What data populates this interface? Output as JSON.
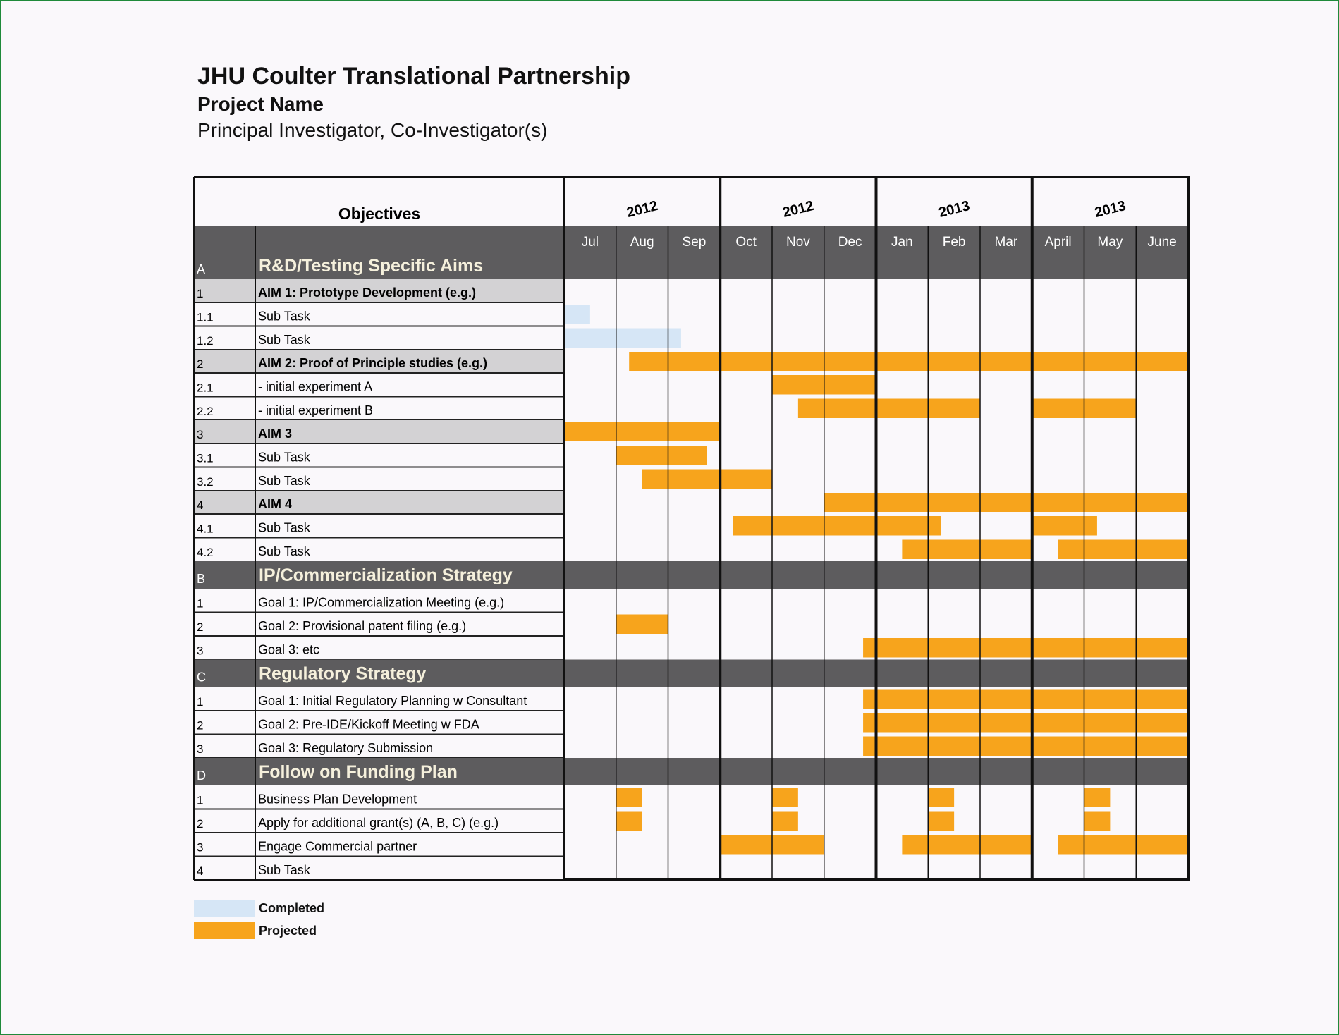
{
  "header": {
    "title": "JHU Coulter Translational Partnership",
    "project": "Project Name",
    "investigators": "Principal Investigator, Co-Investigator(s)"
  },
  "table": {
    "objectives_label": "Objectives",
    "years": [
      "2012",
      "2012",
      "2013",
      "2013"
    ],
    "months": [
      "Jul",
      "Aug",
      "Sep",
      "Oct",
      "Nov",
      "Dec",
      "Jan",
      "Feb",
      "Mar",
      "April",
      "May",
      "June"
    ]
  },
  "colors": {
    "completed": "#d6e6f6",
    "projected": "#f7a41c",
    "section_bg": "#5d5c5e",
    "aim_bg": "#d3d2d4"
  },
  "rows": [
    {
      "type": "section",
      "id": "A",
      "label": "R&D/Testing Specific Aims",
      "bars": []
    },
    {
      "type": "aim",
      "id": "1",
      "label": "AIM 1: Prototype Development (e.g.)",
      "bars": []
    },
    {
      "type": "task",
      "id": "1.1",
      "label": "Sub Task",
      "bars": [
        {
          "start": 0,
          "end": 0.5,
          "kind": "completed"
        }
      ]
    },
    {
      "type": "task",
      "id": "1.2",
      "label": "Sub Task",
      "bars": [
        {
          "start": 0,
          "end": 2.25,
          "kind": "completed"
        }
      ]
    },
    {
      "type": "aim",
      "id": "2",
      "label": "AIM 2: Proof of Principle studies (e.g.)",
      "bars": [
        {
          "start": 1.25,
          "end": 12,
          "kind": "projected"
        }
      ]
    },
    {
      "type": "task",
      "id": "2.1",
      "label": " - initial experiment A",
      "bars": [
        {
          "start": 4,
          "end": 6,
          "kind": "projected"
        }
      ]
    },
    {
      "type": "task",
      "id": "2.2",
      "label": " - initial experiment B",
      "bars": [
        {
          "start": 4.5,
          "end": 8,
          "kind": "projected"
        },
        {
          "start": 9,
          "end": 11,
          "kind": "projected"
        }
      ]
    },
    {
      "type": "aim",
      "id": "3",
      "label": "AIM 3",
      "bars": [
        {
          "start": 0,
          "end": 3,
          "kind": "projected"
        }
      ]
    },
    {
      "type": "task",
      "id": "3.1",
      "label": "Sub Task",
      "bars": [
        {
          "start": 1,
          "end": 2.75,
          "kind": "projected"
        }
      ]
    },
    {
      "type": "task",
      "id": "3.2",
      "label": "Sub Task",
      "bars": [
        {
          "start": 1.5,
          "end": 4,
          "kind": "projected"
        }
      ]
    },
    {
      "type": "aim",
      "id": "4",
      "label": "AIM 4",
      "bars": [
        {
          "start": 5,
          "end": 12,
          "kind": "projected"
        }
      ]
    },
    {
      "type": "task",
      "id": "4.1",
      "label": "Sub Task",
      "bars": [
        {
          "start": 3.25,
          "end": 7.25,
          "kind": "projected"
        },
        {
          "start": 9,
          "end": 10.25,
          "kind": "projected"
        }
      ]
    },
    {
      "type": "task",
      "id": "4.2",
      "label": "Sub Task",
      "bars": [
        {
          "start": 6.5,
          "end": 9,
          "kind": "projected"
        },
        {
          "start": 9.5,
          "end": 12,
          "kind": "projected"
        }
      ]
    },
    {
      "type": "section",
      "id": "B",
      "label": "IP/Commercialization Strategy",
      "bars": []
    },
    {
      "type": "task",
      "id": "1",
      "label": "Goal 1: IP/Commercialization Meeting (e.g.)",
      "bars": []
    },
    {
      "type": "task",
      "id": "2",
      "label": "Goal 2: Provisional patent filing (e.g.)",
      "bars": [
        {
          "start": 1,
          "end": 2,
          "kind": "projected"
        }
      ]
    },
    {
      "type": "task",
      "id": "3",
      "label": "Goal 3: etc",
      "bars": [
        {
          "start": 5.75,
          "end": 12,
          "kind": "projected"
        }
      ]
    },
    {
      "type": "section",
      "id": "C",
      "label": "Regulatory Strategy",
      "bars": []
    },
    {
      "type": "task",
      "id": "1",
      "label": "Goal 1: Initial Regulatory Planning w Consultant",
      "bars": [
        {
          "start": 5.75,
          "end": 12,
          "kind": "projected"
        }
      ]
    },
    {
      "type": "task",
      "id": "2",
      "label": "Goal 2: Pre-IDE/Kickoff Meeting w FDA",
      "bars": [
        {
          "start": 5.75,
          "end": 12,
          "kind": "projected"
        }
      ]
    },
    {
      "type": "task",
      "id": "3",
      "label": "Goal 3: Regulatory Submission",
      "bars": [
        {
          "start": 5.75,
          "end": 12,
          "kind": "projected"
        }
      ]
    },
    {
      "type": "section",
      "id": "D",
      "label": "Follow on Funding Plan",
      "bars": []
    },
    {
      "type": "task",
      "id": "1",
      "label": "Business Plan Development",
      "bars": [
        {
          "start": 1,
          "end": 1.5,
          "kind": "projected"
        },
        {
          "start": 4,
          "end": 4.5,
          "kind": "projected"
        },
        {
          "start": 7,
          "end": 7.5,
          "kind": "projected"
        },
        {
          "start": 10,
          "end": 10.5,
          "kind": "projected"
        }
      ]
    },
    {
      "type": "task",
      "id": "2",
      "label": "Apply for additional grant(s) (A, B, C) (e.g.)",
      "bars": [
        {
          "start": 1,
          "end": 1.5,
          "kind": "projected"
        },
        {
          "start": 4,
          "end": 4.5,
          "kind": "projected"
        },
        {
          "start": 7,
          "end": 7.5,
          "kind": "projected"
        },
        {
          "start": 10,
          "end": 10.5,
          "kind": "projected"
        }
      ]
    },
    {
      "type": "task",
      "id": "3",
      "label": "Engage Commercial partner",
      "bars": [
        {
          "start": 3,
          "end": 5,
          "kind": "projected"
        },
        {
          "start": 6.5,
          "end": 9,
          "kind": "projected"
        },
        {
          "start": 9.5,
          "end": 12,
          "kind": "projected"
        }
      ]
    },
    {
      "type": "task",
      "id": "4",
      "label": "Sub Task",
      "bars": []
    }
  ],
  "legend": [
    {
      "label": "Completed",
      "color": "#d6e6f6"
    },
    {
      "label": "Projected",
      "color": "#f7a41c"
    }
  ]
}
